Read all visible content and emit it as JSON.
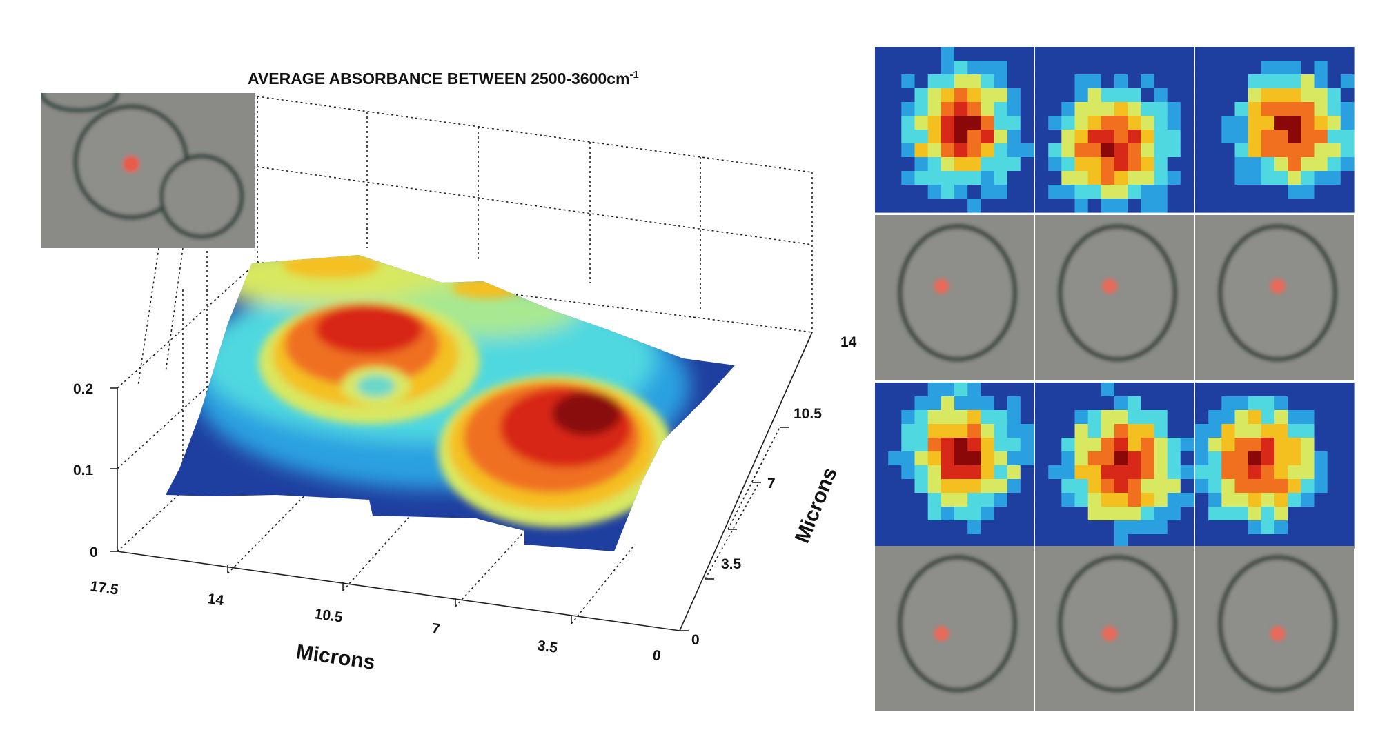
{
  "chart_data": {
    "type": "surface",
    "title": "AVERAGE ABSORBANCE BETWEEN 2500-3600cm",
    "title_superscript": "-1",
    "x_axis": {
      "label": "Microns",
      "ticks": [
        "17.5",
        "14",
        "10.5",
        "7",
        "3.5",
        "0"
      ],
      "range": [
        17.5,
        0
      ]
    },
    "y_axis": {
      "label": "Microns",
      "ticks": [
        "0",
        "3.5",
        "7",
        "10.5",
        "14"
      ],
      "range": [
        0,
        14
      ]
    },
    "z_axis": {
      "label": "",
      "ticks": [
        "0",
        "0.1",
        "0.2"
      ],
      "range": [
        0,
        0.2
      ]
    },
    "grid": true,
    "colormap": "jet",
    "colormap_colors": [
      "#1f3fa0",
      "#2aa0e0",
      "#4fd8e0",
      "#d8e860",
      "#f4c020",
      "#f07020",
      "#d82818",
      "#8a0808"
    ],
    "surface_features": [
      {
        "description": "ring-shaped cell with central depression",
        "x": 11.5,
        "y": 8.5,
        "peak_absorbance": 0.2
      },
      {
        "description": "filled cell with high absorbance",
        "x": 4.5,
        "y": 7.0,
        "peak_absorbance": 0.2
      },
      {
        "description": "rear edge bump",
        "x": 13.0,
        "y": 13.5,
        "peak_absorbance": 0.12
      }
    ],
    "inset": {
      "description": "optical micrograph of red blood cells"
    },
    "right_panel": {
      "rows": 4,
      "columns": 3,
      "row_types": [
        "absorbance-map",
        "optical-image",
        "absorbance-map",
        "optical-image"
      ]
    }
  }
}
